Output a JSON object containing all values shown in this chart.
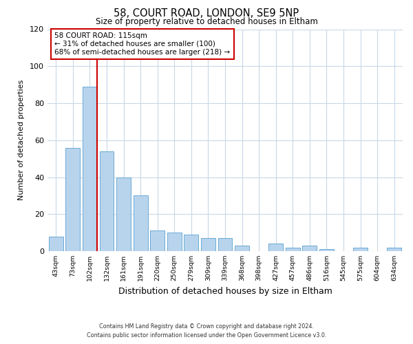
{
  "title1": "58, COURT ROAD, LONDON, SE9 5NP",
  "title2": "Size of property relative to detached houses in Eltham",
  "xlabel": "Distribution of detached houses by size in Eltham",
  "ylabel": "Number of detached properties",
  "bar_labels": [
    "43sqm",
    "73sqm",
    "102sqm",
    "132sqm",
    "161sqm",
    "191sqm",
    "220sqm",
    "250sqm",
    "279sqm",
    "309sqm",
    "339sqm",
    "368sqm",
    "398sqm",
    "427sqm",
    "457sqm",
    "486sqm",
    "516sqm",
    "545sqm",
    "575sqm",
    "604sqm",
    "634sqm"
  ],
  "bar_values": [
    8,
    56,
    89,
    54,
    40,
    30,
    11,
    10,
    9,
    7,
    7,
    3,
    0,
    4,
    2,
    3,
    1,
    0,
    2,
    0,
    2
  ],
  "bar_color": "#b8d4ed",
  "bar_edge_color": "#6aaad4",
  "property_line_color": "#cc0000",
  "annotation_line1": "58 COURT ROAD: 115sqm",
  "annotation_line2": "← 31% of detached houses are smaller (100)",
  "annotation_line3": "68% of semi-detached houses are larger (218) →",
  "annotation_box_edgecolor": "#cc0000",
  "annotation_box_facecolor": "#ffffff",
  "ylim": [
    0,
    120
  ],
  "yticks": [
    0,
    20,
    40,
    60,
    80,
    100,
    120
  ],
  "footer_text": "Contains HM Land Registry data © Crown copyright and database right 2024.\nContains public sector information licensed under the Open Government Licence v3.0.",
  "bg_color": "#ffffff",
  "grid_color": "#c8d8e8"
}
